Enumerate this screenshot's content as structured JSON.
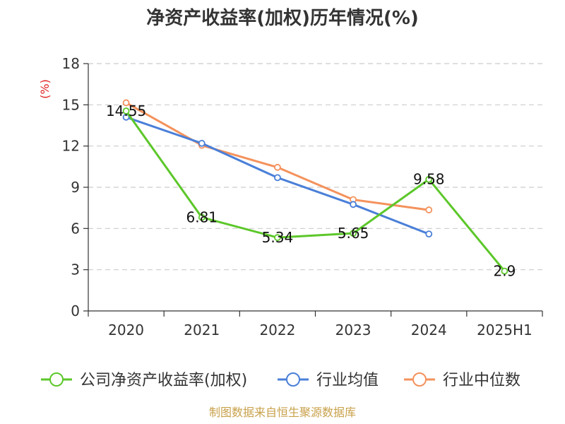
{
  "chart_data": {
    "type": "line",
    "title": "净资产收益率(加权)历年情况(%)",
    "ylabel": "(%)",
    "xlabel": "",
    "categories": [
      "2020",
      "2021",
      "2022",
      "2023",
      "2024",
      "2025H1"
    ],
    "ylim": [
      0,
      18
    ],
    "yticks": [
      0,
      3,
      6,
      9,
      12,
      15,
      18
    ],
    "grid": true,
    "legend_position": "bottom",
    "series": [
      {
        "name": "公司净资产收益率(加权)",
        "color": "#5cc72a",
        "values": [
          14.55,
          6.81,
          5.34,
          5.65,
          9.58,
          2.9
        ],
        "labels": [
          "14.55",
          "6.81",
          "5.34",
          "5.65",
          "9.58",
          "2.9"
        ]
      },
      {
        "name": "行业均值",
        "color": "#4a7fd8",
        "values": [
          14.1,
          12.2,
          9.7,
          7.75,
          5.6,
          null
        ]
      },
      {
        "name": "行业中位数",
        "color": "#f4925c",
        "values": [
          15.15,
          12.05,
          10.45,
          8.1,
          7.35,
          null
        ]
      }
    ]
  },
  "footer": {
    "source": "制图数据来自恒生聚源数据库"
  }
}
